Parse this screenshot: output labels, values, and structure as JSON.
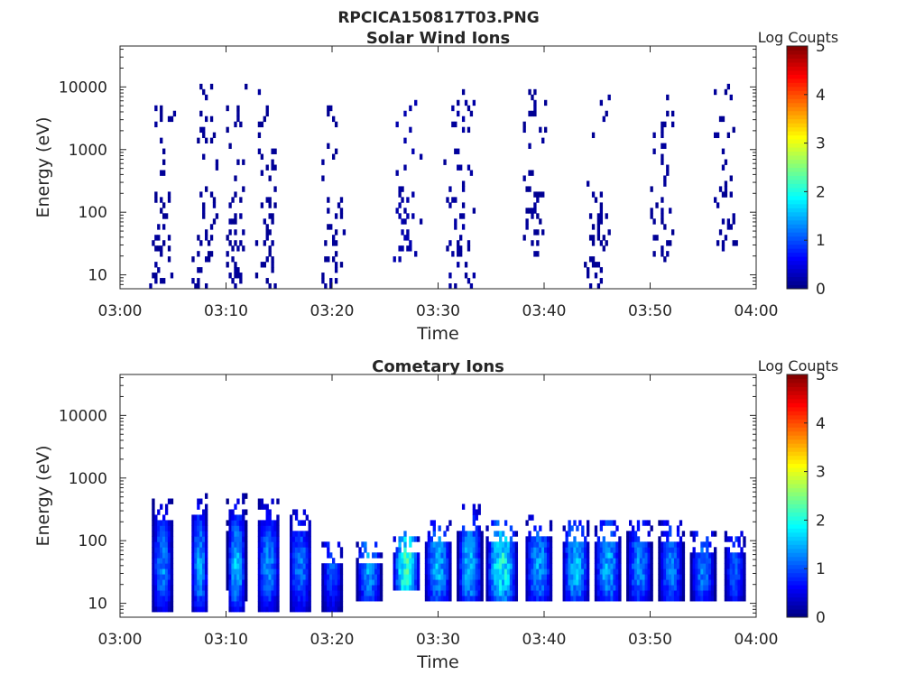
{
  "page_title": "RPCICA150817T03.PNG",
  "colorbar": {
    "title": "Log Counts",
    "min": 0,
    "max": 5,
    "ticks": [
      "0",
      "1",
      "2",
      "3",
      "4",
      "5"
    ],
    "colormap": "jet"
  },
  "chart_data": [
    {
      "type": "heatmap",
      "title": "Solar Wind Ions",
      "xlabel": "Time",
      "ylabel": "Energy (eV)",
      "x_ticks": [
        "03:00",
        "03:10",
        "03:20",
        "03:30",
        "03:40",
        "03:50",
        "04:00"
      ],
      "xlim": [
        "03:00",
        "04:00"
      ],
      "y_scale": "log",
      "ylim": [
        6,
        45000
      ],
      "y_ticks": [
        10,
        100,
        1000,
        10000
      ],
      "y_tick_labels": [
        "10",
        "100",
        "1000",
        "10000"
      ],
      "colorbar_range": [
        0,
        5
      ],
      "bursts": [
        {
          "time": "03:04",
          "width_min": 2.4,
          "e_min": 6,
          "e_max": 15000,
          "c_max": 0.15
        },
        {
          "time": "03:08",
          "width_min": 2.6,
          "e_min": 6,
          "e_max": 13000,
          "c_max": 0.15
        },
        {
          "time": "03:11",
          "width_min": 2.2,
          "e_min": 6,
          "e_max": 11000,
          "c_max": 0.15
        },
        {
          "time": "03:14",
          "width_min": 2.6,
          "e_min": 6,
          "e_max": 13000,
          "c_max": 0.15
        },
        {
          "time": "03:20",
          "width_min": 2.6,
          "e_min": 6,
          "e_max": 8000,
          "c_max": 0.15
        },
        {
          "time": "03:27",
          "width_min": 2.8,
          "e_min": 15,
          "e_max": 7000,
          "c_max": 0.25
        },
        {
          "time": "03:32",
          "width_min": 3.0,
          "e_min": 6,
          "e_max": 11000,
          "c_max": 0.2
        },
        {
          "time": "03:39",
          "width_min": 3.0,
          "e_min": 15,
          "e_max": 10000,
          "c_max": 0.15
        },
        {
          "time": "03:45",
          "width_min": 2.6,
          "e_min": 6,
          "e_max": 9000,
          "c_max": 0.15
        },
        {
          "time": "03:51",
          "width_min": 2.6,
          "e_min": 15,
          "e_max": 8000,
          "c_max": 0.15
        },
        {
          "time": "03:57",
          "width_min": 3.0,
          "e_min": 15,
          "e_max": 16000,
          "c_max": 0.15
        }
      ]
    },
    {
      "type": "heatmap",
      "title": "Cometary Ions",
      "xlabel": "Time",
      "ylabel": "Energy (eV)",
      "x_ticks": [
        "03:00",
        "03:10",
        "03:20",
        "03:30",
        "03:40",
        "03:50",
        "04:00"
      ],
      "xlim": [
        "03:00",
        "04:00"
      ],
      "y_scale": "log",
      "ylim": [
        6,
        45000
      ],
      "y_ticks": [
        10,
        100,
        1000,
        10000
      ],
      "y_tick_labels": [
        "10",
        "100",
        "1000",
        "10000"
      ],
      "colorbar_range": [
        0,
        5
      ],
      "bursts": [
        {
          "time": "03:04",
          "width_min": 2.0,
          "e_min": 7,
          "e_max": 450,
          "c_max": 1.4
        },
        {
          "time": "03:07.5",
          "width_min": 1.6,
          "e_min": 7,
          "e_max": 550,
          "c_max": 1.6
        },
        {
          "time": "03:11",
          "width_min": 1.8,
          "e_min": 7,
          "e_max": 550,
          "c_max": 1.7
        },
        {
          "time": "03:14",
          "width_min": 2.2,
          "e_min": 7,
          "e_max": 450,
          "c_max": 1.4
        },
        {
          "time": "03:17",
          "width_min": 2.2,
          "e_min": 7,
          "e_max": 300,
          "c_max": 1.3
        },
        {
          "time": "03:20",
          "width_min": 2.0,
          "e_min": 7,
          "e_max": 100,
          "c_max": 1.1
        },
        {
          "time": "03:23.5",
          "width_min": 2.4,
          "e_min": 10,
          "e_max": 100,
          "c_max": 1.5
        },
        {
          "time": "03:27",
          "width_min": 2.6,
          "e_min": 15,
          "e_max": 150,
          "c_max": 2.2
        },
        {
          "time": "03:30",
          "width_min": 2.6,
          "e_min": 10,
          "e_max": 200,
          "c_max": 1.6
        },
        {
          "time": "03:33",
          "width_min": 2.4,
          "e_min": 10,
          "e_max": 350,
          "c_max": 1.7
        },
        {
          "time": "03:36",
          "width_min": 3.0,
          "e_min": 10,
          "e_max": 200,
          "c_max": 2.1
        },
        {
          "time": "03:39.5",
          "width_min": 2.6,
          "e_min": 10,
          "e_max": 250,
          "c_max": 1.5
        },
        {
          "time": "03:43",
          "width_min": 2.6,
          "e_min": 10,
          "e_max": 200,
          "c_max": 1.7
        },
        {
          "time": "03:46",
          "width_min": 2.6,
          "e_min": 10,
          "e_max": 200,
          "c_max": 1.6
        },
        {
          "time": "03:49",
          "width_min": 2.4,
          "e_min": 10,
          "e_max": 200,
          "c_max": 1.4
        },
        {
          "time": "03:52",
          "width_min": 2.4,
          "e_min": 10,
          "e_max": 200,
          "c_max": 1.3
        },
        {
          "time": "03:55",
          "width_min": 2.4,
          "e_min": 10,
          "e_max": 150,
          "c_max": 1.3
        },
        {
          "time": "03:58",
          "width_min": 2.0,
          "e_min": 10,
          "e_max": 150,
          "c_max": 1.1
        }
      ]
    }
  ]
}
